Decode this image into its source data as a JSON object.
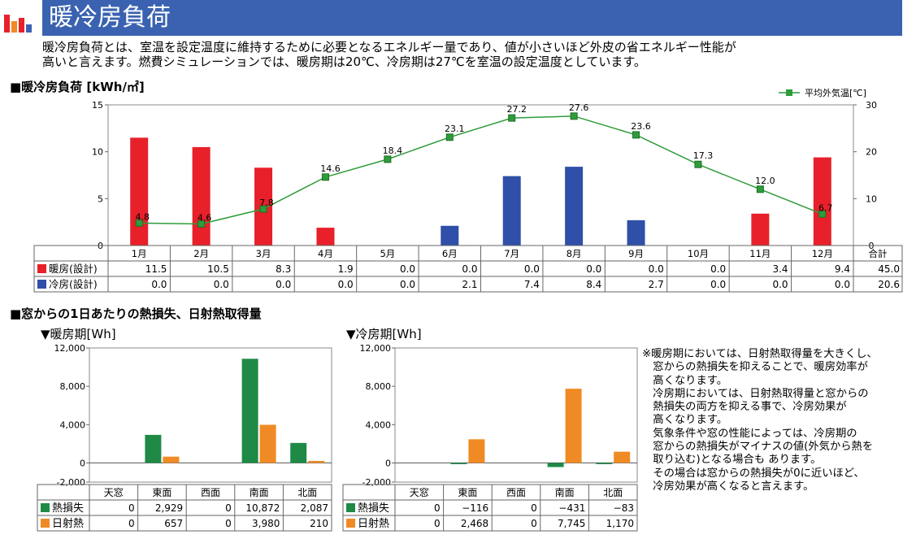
{
  "header": {
    "title": "暖冷房負荷"
  },
  "intro": {
    "line1": "暖冷房負荷とは、室温を設定温度に維持するために必要となるエネルギー量であり、値が小さいほど外皮の省エネルギー性能が",
    "line2": "高いと言えます。燃費シミュレーションでは、暖房期は20℃、冷房期は27℃を室温の設定温度としています。"
  },
  "section1": {
    "title": "■暖冷房負荷 [kWh/㎡]"
  },
  "section2": {
    "title": "■窓からの1日あたりの熱損失、日射熱取得量"
  },
  "colors": {
    "heating": "#e8202a",
    "cooling": "#2f4fa8",
    "temp_line": "#2e9c3a",
    "loss": "#1e8a46",
    "gain": "#f08a24",
    "banner": "#3a62b0"
  },
  "chart_data": [
    {
      "type": "bar",
      "categories": [
        "1月",
        "2月",
        "3月",
        "4月",
        "5月",
        "6月",
        "7月",
        "8月",
        "9月",
        "10月",
        "11月",
        "12月"
      ],
      "total_label": "合計",
      "series": [
        {
          "name": "暖房(設計)",
          "values": [
            11.5,
            10.5,
            8.3,
            1.9,
            0.0,
            0.0,
            0.0,
            0.0,
            0.0,
            0.0,
            3.4,
            9.4
          ],
          "total": "45.0"
        },
        {
          "name": "冷房(設計)",
          "values": [
            0.0,
            0.0,
            0.0,
            0.0,
            0.0,
            2.1,
            7.4,
            8.4,
            2.7,
            0.0,
            0.0,
            0.0
          ],
          "total": "20.6"
        }
      ],
      "line": {
        "name": "平均外気温[℃]",
        "values": [
          4.8,
          4.6,
          7.8,
          14.6,
          18.4,
          23.1,
          27.2,
          27.6,
          23.6,
          17.3,
          12.0,
          6.7
        ],
        "axis": "right"
      },
      "ylim": [
        0,
        15
      ],
      "yticks": [
        0,
        5,
        10,
        15
      ],
      "y2lim": [
        0,
        30
      ],
      "y2ticks": [
        0,
        10,
        20,
        30
      ],
      "legend_position": "top-right"
    },
    {
      "type": "bar",
      "title": "▼暖房期[Wh]",
      "categories": [
        "天窓",
        "東面",
        "西面",
        "南面",
        "北面"
      ],
      "series": [
        {
          "name": "熱損失",
          "values": [
            0,
            2929,
            0,
            10872,
            2087
          ],
          "labels": [
            "0",
            "2,929",
            "0",
            "10,872",
            "2,087"
          ]
        },
        {
          "name": "日射熱",
          "values": [
            0,
            657,
            0,
            3980,
            210
          ],
          "labels": [
            "0",
            "657",
            "0",
            "3,980",
            "210"
          ]
        }
      ],
      "ylim": [
        -2000,
        12000
      ],
      "yticks": [
        -2000,
        0,
        4000,
        8000,
        12000
      ],
      "yticklabels": [
        "-2,000",
        "0",
        "4,000",
        "8,000",
        "12,000"
      ]
    },
    {
      "type": "bar",
      "title": "▼冷房期[Wh]",
      "categories": [
        "天窓",
        "東面",
        "西面",
        "南面",
        "北面"
      ],
      "series": [
        {
          "name": "熱損失",
          "values": [
            0,
            -116,
            0,
            -431,
            -83
          ],
          "labels": [
            "0",
            "−116",
            "0",
            "−431",
            "−83"
          ]
        },
        {
          "name": "日射熱",
          "values": [
            0,
            2468,
            0,
            7745,
            1170
          ],
          "labels": [
            "0",
            "2,468",
            "0",
            "7,745",
            "1,170"
          ]
        }
      ],
      "ylim": [
        -2000,
        12000
      ],
      "yticks": [
        -2000,
        0,
        4000,
        8000,
        12000
      ],
      "yticklabels": [
        "-2,000",
        "0",
        "4,000",
        "8,000",
        "12,000"
      ]
    }
  ],
  "note": {
    "lines": [
      "※暖房期においては、日射熱取得量を大きくし、",
      "　窓からの熱損失を抑えることで、暖房効率が",
      "　高くなります。",
      "　冷房期においては、日射熱取得量と窓からの",
      "　熱損失の両方を抑える事で、冷房効果が",
      "　高くなります。",
      "　気象条件や窓の性能によっては、冷房期の",
      "　窓からの熱損失がマイナスの値(外気から熱を",
      "　取り込む)となる場合も あります。",
      "　その場合は窓からの熱損失が0に近いほど、",
      "　冷房効果が高くなると言えます。"
    ]
  }
}
